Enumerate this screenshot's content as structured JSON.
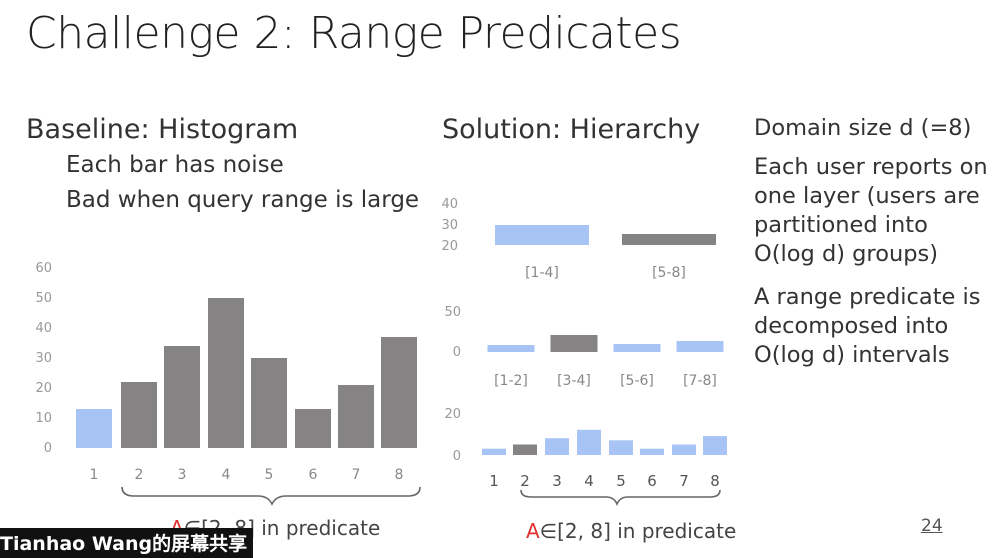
{
  "title": "Challenge 2: Range Predicates",
  "baseline": {
    "heading": "Baseline: Histogram",
    "bullets": [
      "Each bar has noise",
      "Bad when query range is large"
    ],
    "predicate_prefix": "A",
    "predicate_text": "∈[2, 8] in predicate"
  },
  "solution": {
    "heading": "Solution: Hierarchy",
    "predicate_prefix": "A",
    "predicate_text": "∈[2, 8] in predicate"
  },
  "right_text": {
    "p1": "Domain size d (=8)",
    "p2": "Each user reports on one layer (users are partitioned into O(log d) groups)",
    "p3": "A range predicate is decomposed into O(log d) intervals"
  },
  "page_number": "24",
  "overlay_text": "Tianhao Wang的屏幕共享",
  "colors": {
    "highlight": "#a8c4f5",
    "bar": "#858383",
    "red": "#e03030"
  },
  "chart_data": [
    {
      "type": "bar",
      "title": "",
      "categories": [
        "1",
        "2",
        "3",
        "4",
        "5",
        "6",
        "7",
        "8"
      ],
      "values": [
        13,
        22,
        34,
        50,
        30,
        13,
        21,
        37
      ],
      "highlighted": [
        true,
        false,
        false,
        false,
        false,
        false,
        false,
        false
      ],
      "ylim": [
        0,
        60
      ],
      "yticks": [
        "0",
        "10",
        "20",
        "30",
        "40",
        "50",
        "60"
      ]
    },
    {
      "type": "bar",
      "title": "",
      "categories": [
        "[1-4]",
        "[5-8]"
      ],
      "values": [
        29,
        25
      ],
      "highlighted": [
        true,
        false
      ],
      "yticks": [
        "20",
        "30",
        "40"
      ]
    },
    {
      "type": "bar",
      "title": "",
      "categories": [
        "[1-2]",
        "[3-4]",
        "[5-6]",
        "[7-8]"
      ],
      "values": [
        11,
        32,
        14,
        19
      ],
      "highlighted": [
        true,
        false,
        true,
        true
      ],
      "yticks": [
        "0",
        "50"
      ]
    },
    {
      "type": "bar",
      "title": "",
      "categories": [
        "1",
        "2",
        "3",
        "4",
        "5",
        "6",
        "7",
        "8"
      ],
      "values": [
        6,
        10,
        16,
        24,
        14,
        6,
        10,
        18
      ],
      "highlighted": [
        true,
        false,
        true,
        true,
        true,
        true,
        true,
        true
      ],
      "yticks": [
        "0",
        "20"
      ]
    }
  ]
}
